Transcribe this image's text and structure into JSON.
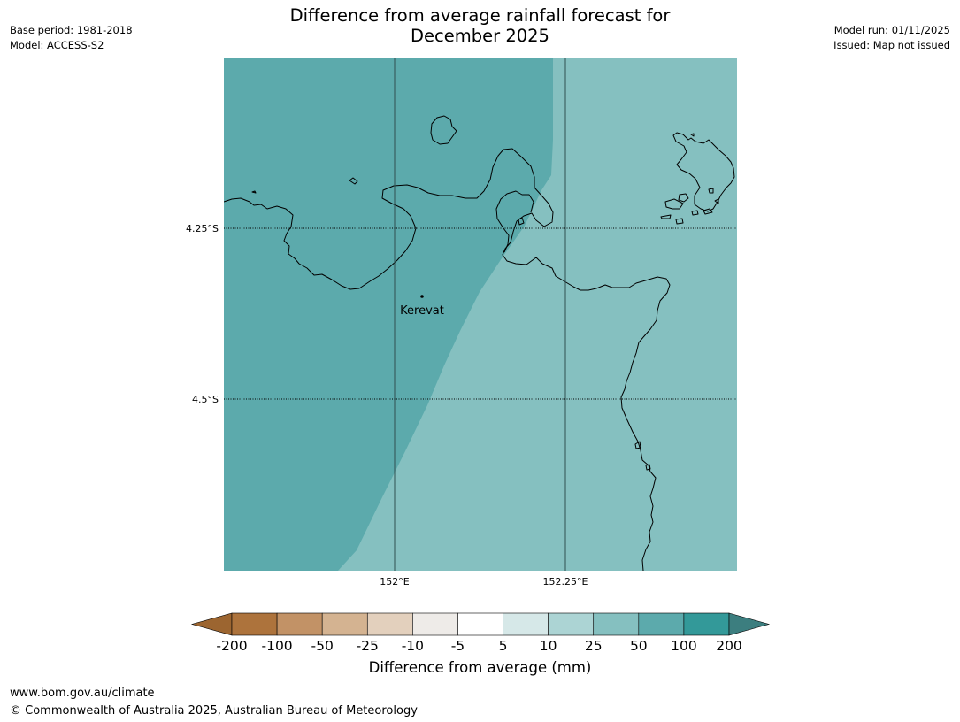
{
  "title": {
    "line1": "Difference from average rainfall forecast for",
    "line2": "December 2025"
  },
  "meta_left": {
    "base_period": "Base period: 1981-2018",
    "model": "Model: ACCESS-S2"
  },
  "meta_right": {
    "model_run": "Model run: 01/11/2025",
    "issued": "Issued: Map not issued"
  },
  "map": {
    "lat_labels": [
      "4.25°S",
      "4.5°S"
    ],
    "lon_labels": [
      "152°E",
      "152.25°E"
    ],
    "place": {
      "name": "Kerevat"
    },
    "fill_colors": {
      "wet_100": "#5caaac",
      "wet_50": "#85c0c0"
    },
    "coastline_color": "#000000"
  },
  "colorbar": {
    "title": "Difference from average (mm)",
    "ticks": [
      "-200",
      "-100",
      "-50",
      "-25",
      "-10",
      "-5",
      "5",
      "10",
      "25",
      "50",
      "100",
      "200"
    ],
    "bins": [
      {
        "color": "#9c6530"
      },
      {
        "color": "#ad733c"
      },
      {
        "color": "#c29266"
      },
      {
        "color": "#d4b391"
      },
      {
        "color": "#e3d0bd"
      },
      {
        "color": "#eeebe8"
      },
      {
        "color": "#ffffff"
      },
      {
        "color": "#d6e8e8"
      },
      {
        "color": "#acd4d4"
      },
      {
        "color": "#85c0c0"
      },
      {
        "color": "#5caaac"
      },
      {
        "color": "#339999"
      },
      {
        "color": "#3c7e7f"
      }
    ]
  },
  "footer": {
    "url": "www.bom.gov.au/climate",
    "copyright": "© Commonwealth of Australia 2025, Australian Bureau of Meteorology"
  }
}
